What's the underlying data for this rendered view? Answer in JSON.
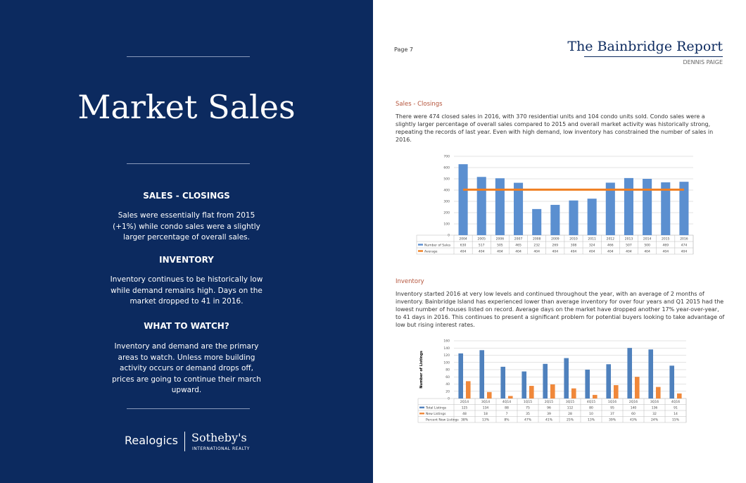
{
  "left_panel": {
    "title": "Market Sales",
    "sections": [
      {
        "heading": "SALES - CLOSINGS",
        "text": "Sales were essentially flat from 2015 (+1%) while condo sales were a slightly larger percentage of overall sales."
      },
      {
        "heading": "INVENTORY",
        "text": "Inventory continues to be historically low while demand remains high. Days on the market dropped to 41 in 2016."
      },
      {
        "heading": "WHAT TO WATCH?",
        "text": "Inventory and demand are the primary areas to watch. Unless more building activity occurs or demand drops off, prices are going to continue their march upward."
      }
    ],
    "logos": {
      "left": "Realogics",
      "right": "Sotheby's",
      "right_sub": "INTERNATIONAL REALTY"
    }
  },
  "header": {
    "page": "Page 7",
    "title": "The Bainbridge Report",
    "author": "DENNIS PAIGE"
  },
  "sections": [
    {
      "heading": "Sales - Closings",
      "text": "There were 474 closed sales in 2016, with 370 residential units and 104 condo units sold.  Condo sales were a slightly larger percentage of overall sales compared to 2015 and overall market activity was historically strong, repeating the records of last year. Even with high demand, low inventory has constrained the number of sales in 2016."
    },
    {
      "heading": "Inventory",
      "text": "Inventory started 2016 at very low levels and continued throughout the year, with an average of 2 months of inventory.  Bainbridge Island has experienced lower than average inventory for over four years and Q1 2015 had the lowest number of houses listed on record.  Average days on the market have dropped another 17% year-over-year, to 41 days in 2016. This continues to present a significant problem for potential buyers looking to take advantage of low but rising interest rates."
    }
  ],
  "chart_data": [
    {
      "type": "bar",
      "categories": [
        "2004",
        "2005",
        "2006",
        "2007",
        "2008",
        "2009",
        "2010",
        "2011",
        "2012",
        "2013",
        "2014",
        "2015",
        "2016"
      ],
      "series": [
        {
          "name": "Number of Sales",
          "type": "bar",
          "color": "#5b8fd0",
          "values": [
            630,
            517,
            505,
            465,
            232,
            269,
            308,
            324,
            466,
            507,
            500,
            469,
            474
          ]
        },
        {
          "name": "Average",
          "type": "line",
          "color": "#f07f22",
          "values": [
            404,
            404,
            404,
            404,
            404,
            404,
            404,
            404,
            404,
            404,
            404,
            404,
            404
          ]
        }
      ],
      "ylim": [
        0,
        700
      ],
      "yticks": [
        0,
        100,
        200,
        300,
        400,
        500,
        600,
        700
      ],
      "grid": true
    },
    {
      "type": "bar",
      "y_label": "Number of Listings",
      "categories": [
        "2Q14",
        "3Q14",
        "4Q14",
        "1Q15",
        "2Q15",
        "3Q15",
        "4Q15",
        "1Q16",
        "2Q16",
        "3Q16",
        "4Q16"
      ],
      "series": [
        {
          "name": "Total Listings",
          "type": "bar",
          "color": "#4f81bd",
          "values": [
            125,
            134,
            88,
            75,
            96,
            112,
            80,
            95,
            140,
            136,
            91
          ]
        },
        {
          "name": "New Listings",
          "type": "bar",
          "color": "#f0883a",
          "values": [
            48,
            18,
            7,
            35,
            39,
            28,
            10,
            37,
            60,
            32,
            14
          ]
        }
      ],
      "table_rows": [
        {
          "name": "Percent New Listings",
          "cells": [
            "38%",
            "13%",
            "8%",
            "47%",
            "41%",
            "25%",
            "13%",
            "39%",
            "43%",
            "24%",
            "15%"
          ]
        }
      ],
      "ylim": [
        0,
        160
      ],
      "yticks": [
        0,
        20,
        40,
        60,
        80,
        100,
        120,
        140,
        160
      ],
      "grid": true
    }
  ]
}
